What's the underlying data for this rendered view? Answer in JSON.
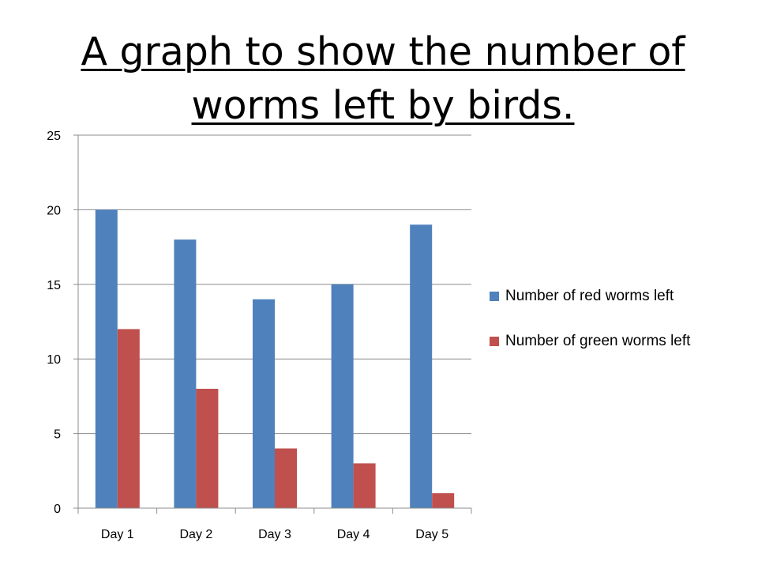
{
  "title": "A graph to show the number of worms left by birds.",
  "chart_data": {
    "type": "bar",
    "categories": [
      "Day 1",
      "Day 2",
      "Day 3",
      "Day 4",
      "Day 5"
    ],
    "series": [
      {
        "name": "Number of red worms left",
        "values": [
          20,
          18,
          14,
          15,
          19
        ],
        "color": "#4f81bd"
      },
      {
        "name": "Number of green worms left",
        "values": [
          12,
          8,
          4,
          3,
          1
        ],
        "color": "#c0504d"
      }
    ],
    "ylim": [
      0,
      25
    ],
    "yticks": [
      0,
      5,
      10,
      15,
      20,
      25
    ],
    "grid": true,
    "legend": "right",
    "xlabel": "",
    "ylabel": ""
  }
}
